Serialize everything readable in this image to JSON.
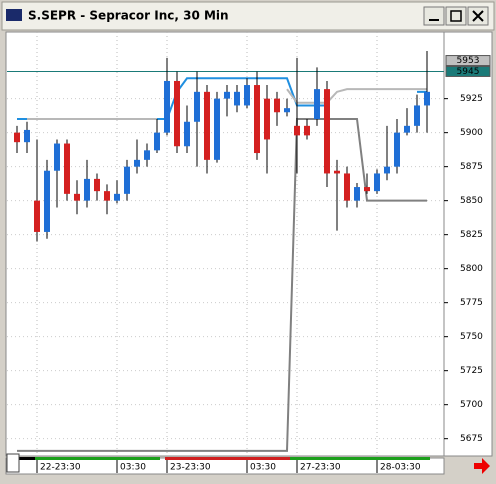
{
  "chart_data": {
    "type": "candlestick",
    "title": "S.SEPR - Sepracor Inc, 30 Min",
    "categories": [
      null,
      null,
      "22-23:30",
      null,
      null,
      null,
      null,
      null,
      null,
      null,
      "03:30",
      null,
      null,
      null,
      null,
      "23-23:30",
      null,
      null,
      null,
      null,
      null,
      null,
      null,
      "03:30",
      null,
      null,
      null,
      null,
      "27-23:30",
      null,
      null,
      null,
      null,
      null,
      null,
      null,
      "28-03:30",
      null,
      null,
      null,
      null,
      null
    ],
    "open": [
      5900,
      5893,
      5850,
      5827,
      5872,
      5892,
      5855,
      5850,
      5866,
      5857,
      5850,
      5855,
      5875,
      5880,
      5887,
      5900,
      5938,
      5890,
      5908,
      5930,
      5880,
      5925,
      5920,
      5920,
      5935,
      5925,
      5925,
      5915,
      5905,
      5905,
      5910,
      5932,
      5872,
      5870,
      5850,
      5860,
      5857,
      5870,
      5875,
      5900,
      5905,
      5920
    ],
    "high": [
      5905,
      5908,
      5895,
      5880,
      5895,
      5895,
      5865,
      5880,
      5870,
      5862,
      5865,
      5880,
      5895,
      5892,
      5910,
      5955,
      5945,
      5920,
      5945,
      5935,
      5930,
      5935,
      5935,
      5940,
      5945,
      5935,
      5930,
      5925,
      5955,
      5910,
      5948,
      5938,
      5880,
      5875,
      5863,
      5870,
      5873,
      5905,
      5910,
      5918,
      5928,
      5960
    ],
    "low": [
      5885,
      5885,
      5820,
      5822,
      5845,
      5850,
      5840,
      5845,
      5850,
      5840,
      5848,
      5850,
      5870,
      5875,
      5885,
      5898,
      5885,
      5885,
      5875,
      5870,
      5878,
      5912,
      5915,
      5918,
      5880,
      5870,
      5905,
      5912,
      5870,
      5895,
      5905,
      5860,
      5828,
      5845,
      5845,
      5855,
      5855,
      5865,
      5870,
      5898,
      5900,
      5900
    ],
    "close": [
      5893,
      5902,
      5827,
      5872,
      5892,
      5855,
      5850,
      5866,
      5857,
      5850,
      5855,
      5875,
      5880,
      5887,
      5900,
      5938,
      5890,
      5908,
      5930,
      5880,
      5925,
      5930,
      5930,
      5935,
      5885,
      5895,
      5915,
      5918,
      5898,
      5898,
      5932,
      5870,
      5870,
      5850,
      5860,
      5857,
      5870,
      5875,
      5900,
      5905,
      5920,
      5930
    ],
    "up_color": "#1f6fd6",
    "down_color": "#d42020",
    "series": [
      {
        "color": "#1f8fe0",
        "values": [
          5910,
          5910,
          null,
          null,
          null,
          null,
          null,
          null,
          null,
          null,
          null,
          null,
          null,
          null,
          5910,
          5910,
          5930,
          5940,
          5940,
          5940,
          5940,
          5940,
          5940,
          5940,
          5940,
          5940,
          5940,
          5940,
          5920,
          5920,
          5920,
          5920,
          null,
          null,
          null,
          null,
          null,
          null,
          null,
          null,
          5930,
          5930
        ]
      },
      {
        "color": "#b8b8b8",
        "values": [
          null,
          5910,
          5910,
          5910,
          5910,
          5910,
          5910,
          5910,
          5910,
          5910,
          5910,
          5910,
          5910,
          5910,
          5910,
          null,
          null,
          null,
          null,
          null,
          null,
          null,
          null,
          null,
          null,
          null,
          null,
          5932,
          5922,
          5922,
          5922,
          5922,
          5930,
          5932,
          5932,
          5932,
          5932,
          5932,
          5932,
          5932,
          5932,
          5932
        ]
      },
      {
        "color": "#808080",
        "values": [
          5666,
          5666,
          5666,
          5666,
          5666,
          5666,
          5666,
          5666,
          5666,
          5666,
          5666,
          5666,
          5666,
          5666,
          5666,
          5666,
          5666,
          5666,
          5666,
          5666,
          5666,
          5666,
          5666,
          5666,
          5666,
          5666,
          5666,
          5666,
          5910,
          5910,
          5910,
          5910,
          5910,
          5910,
          5910,
          5850,
          5850,
          5850,
          5850,
          5850,
          5850,
          5850
        ]
      }
    ],
    "markers": [
      {
        "value": 5953,
        "color": "#c0c0c0"
      },
      {
        "value": 5945,
        "color": "#1a7a78"
      }
    ],
    "ylim": [
      5663,
      5974
    ],
    "yticks": [
      5675,
      5700,
      5725,
      5750,
      5775,
      5800,
      5825,
      5850,
      5875,
      5900,
      5925
    ],
    "grid": true
  }
}
